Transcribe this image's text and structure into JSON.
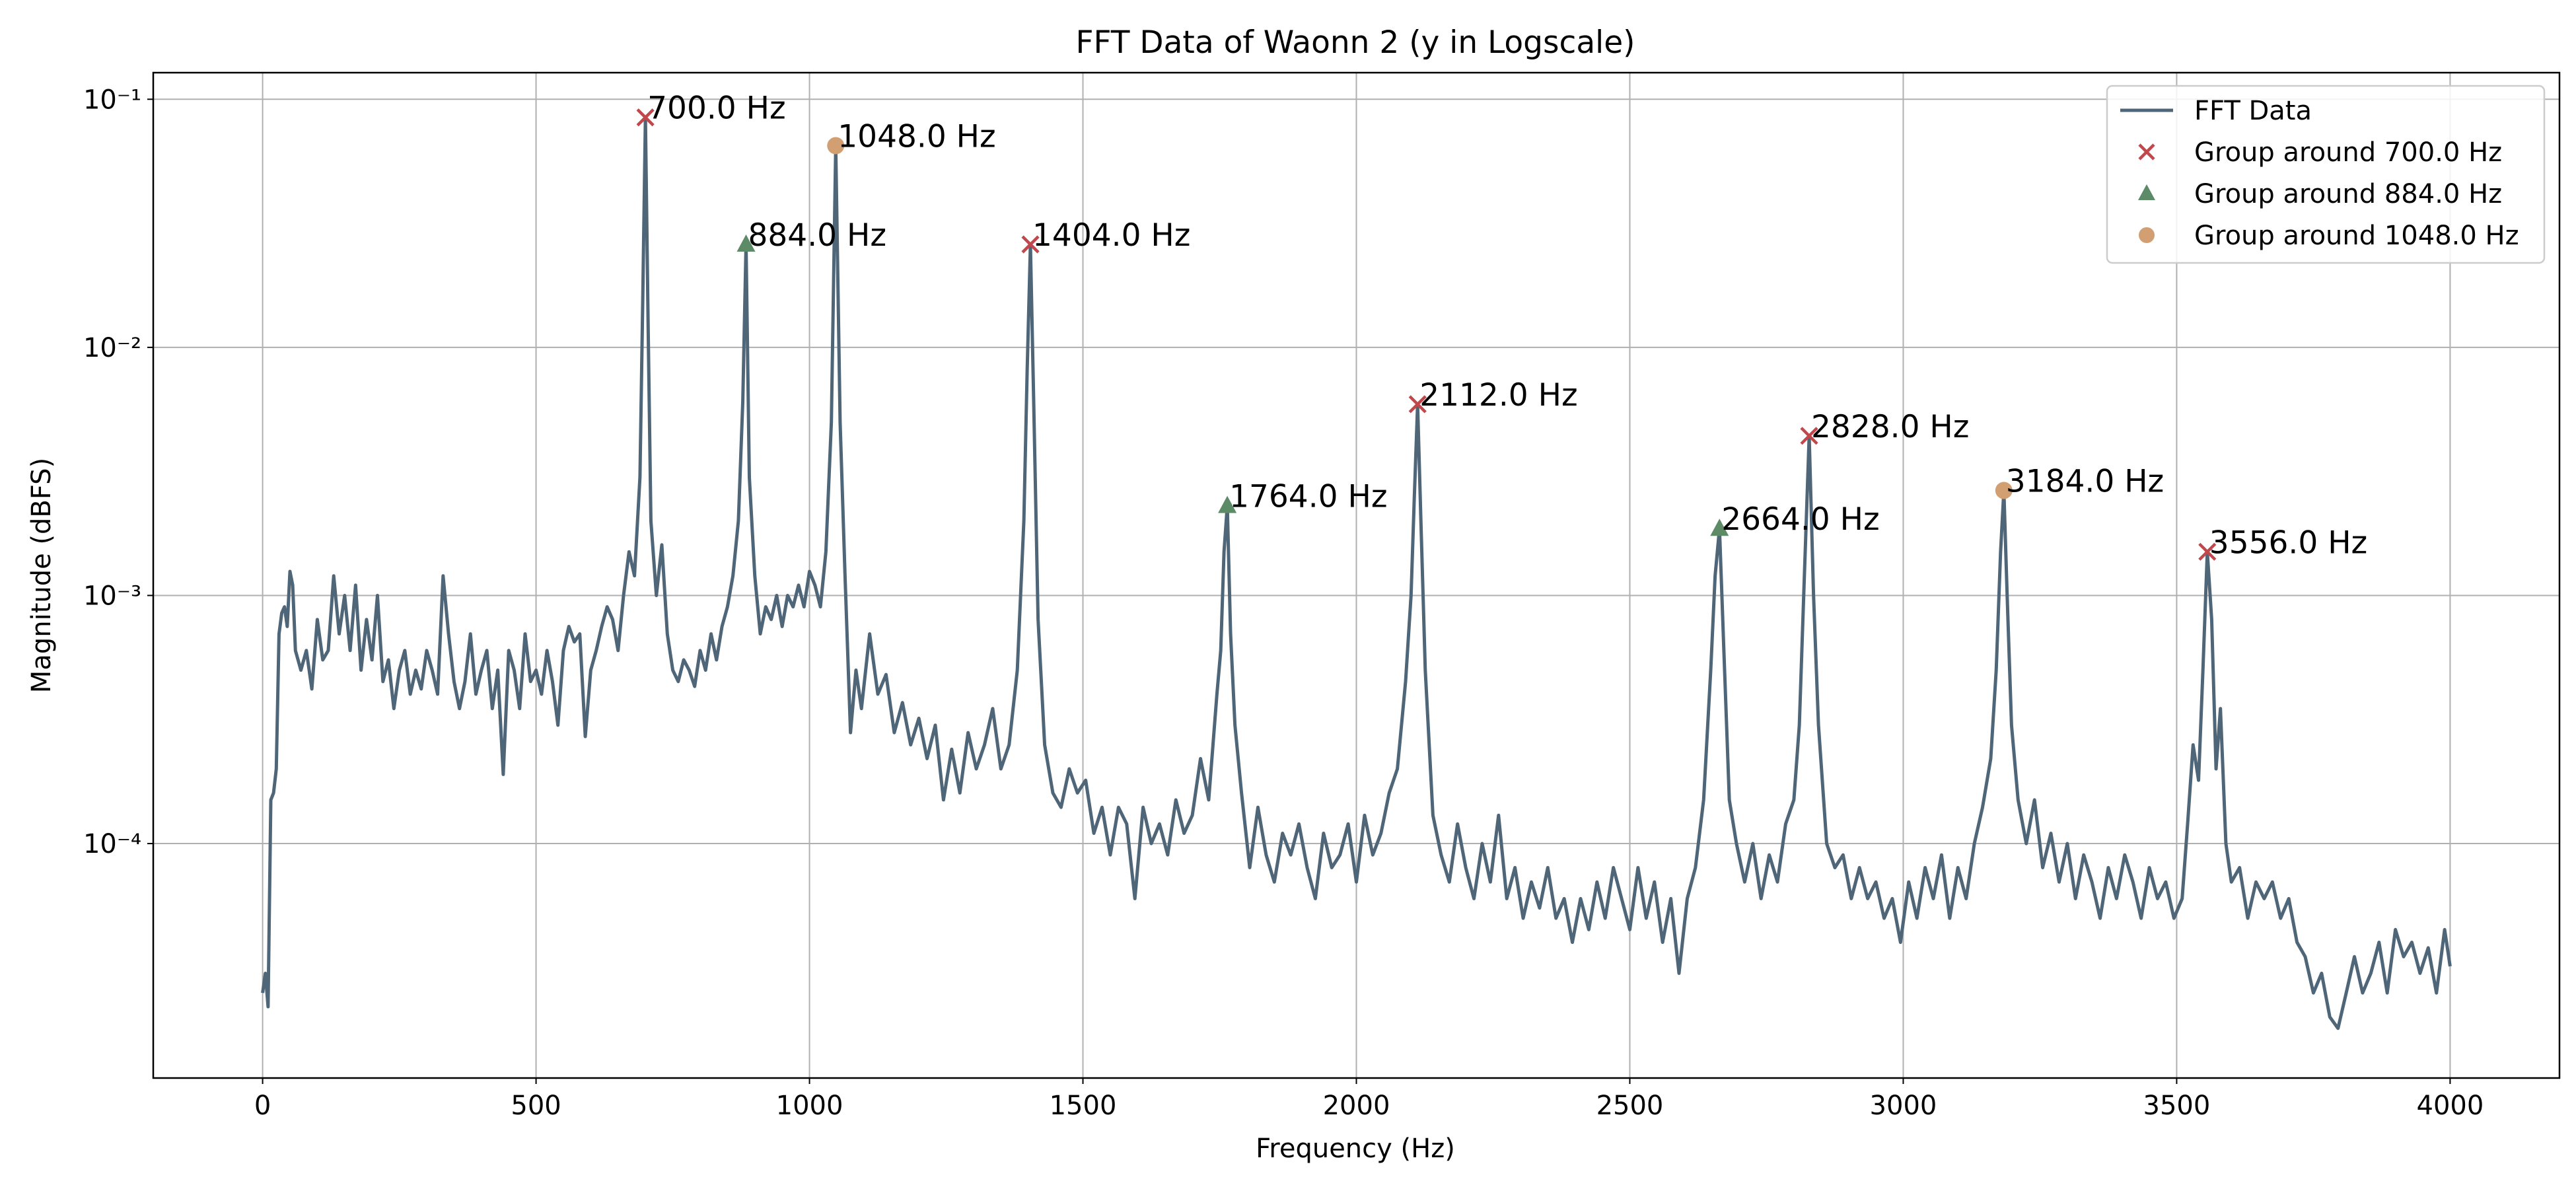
{
  "chart_data": {
    "type": "line",
    "title": "FFT Data of Waonn 2 (y in Logscale)",
    "x_label": "Frequency (Hz)",
    "y_label": "Magnitude (dBFS)",
    "xlim": [
      -200,
      4200
    ],
    "xticks": [
      0,
      500,
      1000,
      1500,
      2000,
      2500,
      3000,
      3500,
      4000
    ],
    "ylim": [
      1.135e-05,
      0.128
    ],
    "yscale": "log",
    "yticks": [
      {
        "value": 0.0001,
        "label": "10⁻⁴"
      },
      {
        "value": 0.001,
        "label": "10⁻³"
      },
      {
        "value": 0.01,
        "label": "10⁻²"
      },
      {
        "value": 0.1,
        "label": "10⁻¹"
      }
    ],
    "grid": true,
    "legend": "upper right",
    "series": [
      {
        "name": "FFT Data",
        "type": "line",
        "color": "#4f6578",
        "x": [
          0,
          5,
          10,
          15,
          20,
          25,
          30,
          35,
          40,
          45,
          50,
          55,
          60,
          70,
          80,
          90,
          100,
          110,
          120,
          130,
          140,
          150,
          160,
          170,
          180,
          190,
          200,
          210,
          220,
          230,
          240,
          250,
          260,
          270,
          280,
          290,
          300,
          310,
          320,
          330,
          340,
          350,
          360,
          370,
          380,
          390,
          400,
          410,
          420,
          430,
          440,
          450,
          460,
          470,
          480,
          490,
          500,
          510,
          520,
          530,
          540,
          550,
          560,
          570,
          580,
          590,
          600,
          610,
          620,
          630,
          640,
          650,
          660,
          670,
          680,
          690,
          695,
          700,
          705,
          710,
          720,
          730,
          740,
          750,
          760,
          770,
          780,
          790,
          800,
          810,
          820,
          830,
          840,
          850,
          860,
          870,
          878,
          884,
          890,
          900,
          910,
          920,
          930,
          940,
          950,
          960,
          970,
          980,
          990,
          1000,
          1010,
          1020,
          1030,
          1040,
          1048,
          1056,
          1065,
          1075,
          1085,
          1095,
          1110,
          1125,
          1140,
          1155,
          1170,
          1185,
          1200,
          1215,
          1230,
          1245,
          1260,
          1275,
          1290,
          1305,
          1320,
          1335,
          1350,
          1365,
          1380,
          1392,
          1398,
          1404,
          1410,
          1418,
          1430,
          1445,
          1460,
          1475,
          1490,
          1505,
          1520,
          1535,
          1550,
          1565,
          1580,
          1595,
          1610,
          1625,
          1640,
          1655,
          1670,
          1685,
          1700,
          1715,
          1730,
          1745,
          1752,
          1758,
          1764,
          1770,
          1778,
          1790,
          1805,
          1820,
          1835,
          1850,
          1865,
          1880,
          1895,
          1910,
          1925,
          1940,
          1955,
          1970,
          1985,
          2000,
          2015,
          2030,
          2045,
          2060,
          2075,
          2090,
          2100,
          2106,
          2112,
          2118,
          2126,
          2140,
          2155,
          2170,
          2185,
          2200,
          2215,
          2230,
          2245,
          2260,
          2275,
          2290,
          2305,
          2320,
          2335,
          2350,
          2365,
          2380,
          2395,
          2410,
          2425,
          2440,
          2455,
          2470,
          2485,
          2500,
          2515,
          2530,
          2545,
          2560,
          2575,
          2590,
          2605,
          2620,
          2635,
          2648,
          2656,
          2664,
          2672,
          2682,
          2695,
          2710,
          2725,
          2740,
          2755,
          2770,
          2785,
          2800,
          2810,
          2818,
          2828,
          2836,
          2845,
          2860,
          2875,
          2890,
          2905,
          2920,
          2935,
          2950,
          2965,
          2980,
          2995,
          3010,
          3025,
          3040,
          3055,
          3070,
          3085,
          3100,
          3115,
          3130,
          3145,
          3160,
          3170,
          3178,
          3184,
          3190,
          3198,
          3210,
          3225,
          3240,
          3255,
          3270,
          3285,
          3300,
          3315,
          3330,
          3345,
          3360,
          3375,
          3390,
          3405,
          3420,
          3435,
          3450,
          3465,
          3480,
          3495,
          3510,
          3520,
          3530,
          3540,
          3548,
          3556,
          3564,
          3572,
          3580,
          3590,
          3600,
          3615,
          3630,
          3645,
          3660,
          3675,
          3690,
          3705,
          3720,
          3735,
          3750,
          3765,
          3780,
          3795,
          3810,
          3825,
          3840,
          3855,
          3870,
          3885,
          3900,
          3915,
          3930,
          3945,
          3960,
          3975,
          3990,
          4000
        ],
        "values": [
          2.5e-05,
          3e-05,
          2.2e-05,
          0.00015,
          0.00016,
          0.0002,
          0.0007,
          0.00085,
          0.0009,
          0.00075,
          0.00125,
          0.0011,
          0.0006,
          0.0005,
          0.0006,
          0.00042,
          0.0008,
          0.00055,
          0.0006,
          0.0012,
          0.0007,
          0.001,
          0.0006,
          0.0011,
          0.0005,
          0.0008,
          0.00055,
          0.001,
          0.00045,
          0.00055,
          0.00035,
          0.0005,
          0.0006,
          0.0004,
          0.0005,
          0.00042,
          0.0006,
          0.0005,
          0.0004,
          0.0012,
          0.0007,
          0.00045,
          0.00035,
          0.00045,
          0.0007,
          0.0004,
          0.0005,
          0.0006,
          0.00035,
          0.0005,
          0.00019,
          0.0006,
          0.0005,
          0.00035,
          0.0007,
          0.00045,
          0.0005,
          0.0004,
          0.0006,
          0.00045,
          0.0003,
          0.0006,
          0.00075,
          0.00065,
          0.0007,
          0.00027,
          0.0005,
          0.0006,
          0.00075,
          0.0009,
          0.0008,
          0.0006,
          0.001,
          0.0015,
          0.0012,
          0.003,
          0.015,
          0.0845,
          0.012,
          0.002,
          0.001,
          0.0016,
          0.0007,
          0.0005,
          0.00045,
          0.00055,
          0.0005,
          0.00043,
          0.0006,
          0.0005,
          0.0007,
          0.00055,
          0.00075,
          0.0009,
          0.0012,
          0.002,
          0.006,
          0.026,
          0.003,
          0.0012,
          0.0007,
          0.0009,
          0.0008,
          0.001,
          0.00075,
          0.001,
          0.0009,
          0.0011,
          0.0009,
          0.00125,
          0.0011,
          0.0009,
          0.0015,
          0.005,
          0.065,
          0.005,
          0.0012,
          0.00028,
          0.0005,
          0.00035,
          0.0007,
          0.0004,
          0.00048,
          0.00028,
          0.00037,
          0.00025,
          0.00032,
          0.00022,
          0.0003,
          0.00015,
          0.00024,
          0.00016,
          0.00028,
          0.0002,
          0.00025,
          0.00035,
          0.0002,
          0.00025,
          0.0005,
          0.002,
          0.008,
          0.026,
          0.006,
          0.0008,
          0.00025,
          0.00016,
          0.00014,
          0.0002,
          0.00016,
          0.00018,
          0.00011,
          0.00014,
          9e-05,
          0.00014,
          0.00012,
          6e-05,
          0.00014,
          0.0001,
          0.00012,
          9e-05,
          0.00015,
          0.00011,
          0.00013,
          0.00022,
          0.00015,
          0.0004,
          0.0006,
          0.0015,
          0.0023,
          0.0007,
          0.0003,
          0.00016,
          8e-05,
          0.00014,
          9e-05,
          7e-05,
          0.00011,
          9e-05,
          0.00012,
          8e-05,
          6e-05,
          0.00011,
          8e-05,
          9e-05,
          0.00012,
          7e-05,
          0.00013,
          9e-05,
          0.00011,
          0.00016,
          0.0002,
          0.00045,
          0.001,
          0.0025,
          0.0059,
          0.002,
          0.0005,
          0.00013,
          9e-05,
          7e-05,
          0.00012,
          8e-05,
          6e-05,
          0.0001,
          7e-05,
          0.00013,
          6e-05,
          8e-05,
          5e-05,
          7e-05,
          5.5e-05,
          8e-05,
          5e-05,
          6e-05,
          4e-05,
          6e-05,
          4.5e-05,
          7e-05,
          5e-05,
          8e-05,
          6e-05,
          4.5e-05,
          8e-05,
          5e-05,
          7e-05,
          4e-05,
          6e-05,
          3e-05,
          6e-05,
          8e-05,
          0.00015,
          0.0005,
          0.0012,
          0.00186,
          0.0006,
          0.00015,
          0.0001,
          7e-05,
          0.0001,
          6e-05,
          9e-05,
          7e-05,
          0.00012,
          0.00015,
          0.0003,
          0.001,
          0.0044,
          0.001,
          0.0003,
          0.0001,
          8e-05,
          9e-05,
          6e-05,
          8e-05,
          6e-05,
          7e-05,
          5e-05,
          6e-05,
          4e-05,
          7e-05,
          5e-05,
          8e-05,
          6e-05,
          9e-05,
          5e-05,
          8e-05,
          6e-05,
          0.0001,
          0.00014,
          0.00022,
          0.0005,
          0.0015,
          0.00265,
          0.001,
          0.0003,
          0.00015,
          0.0001,
          0.00015,
          8e-05,
          0.00011,
          7e-05,
          0.0001,
          6e-05,
          9e-05,
          7e-05,
          5e-05,
          8e-05,
          6e-05,
          9e-05,
          7e-05,
          5e-05,
          8e-05,
          6e-05,
          7e-05,
          5e-05,
          6e-05,
          0.00012,
          0.00025,
          0.00018,
          0.0005,
          0.0015,
          0.0008,
          0.0002,
          0.00035,
          0.0001,
          7e-05,
          8e-05,
          5e-05,
          7e-05,
          6e-05,
          7e-05,
          5e-05,
          6e-05,
          4e-05,
          3.5e-05,
          2.5e-05,
          3e-05,
          2e-05,
          1.8e-05,
          2.5e-05,
          3.5e-05,
          2.5e-05,
          3e-05,
          4e-05,
          2.5e-05,
          4.5e-05,
          3.5e-05,
          4e-05,
          3e-05,
          3.8e-05,
          2.5e-05,
          4.5e-05,
          3.2e-05
        ]
      },
      {
        "name": "Group around 700.0 Hz",
        "type": "scatter",
        "marker": "x",
        "color": "#c0474b",
        "x": [
          700,
          1404,
          2112,
          2828,
          3556
        ],
        "values": [
          0.0845,
          0.026,
          0.0059,
          0.0044,
          0.0015
        ],
        "labels": [
          "700.0 Hz",
          "1404.0 Hz",
          "2112.0 Hz",
          "2828.0 Hz",
          "3556.0 Hz"
        ]
      },
      {
        "name": "Group around 884.0 Hz",
        "type": "scatter",
        "marker": "triangle",
        "color": "#5d8a67",
        "x": [
          884,
          1764,
          2664
        ],
        "values": [
          0.026,
          0.0023,
          0.00186
        ],
        "labels": [
          "884.0 Hz",
          "1764.0 Hz",
          "2664.0 Hz"
        ]
      },
      {
        "name": "Group around 1048.0 Hz",
        "type": "scatter",
        "marker": "circle",
        "color": "#d19f72",
        "x": [
          1048,
          3184
        ],
        "values": [
          0.065,
          0.00265
        ],
        "labels": [
          "1048.0 Hz",
          "3184.0 Hz"
        ]
      }
    ]
  }
}
